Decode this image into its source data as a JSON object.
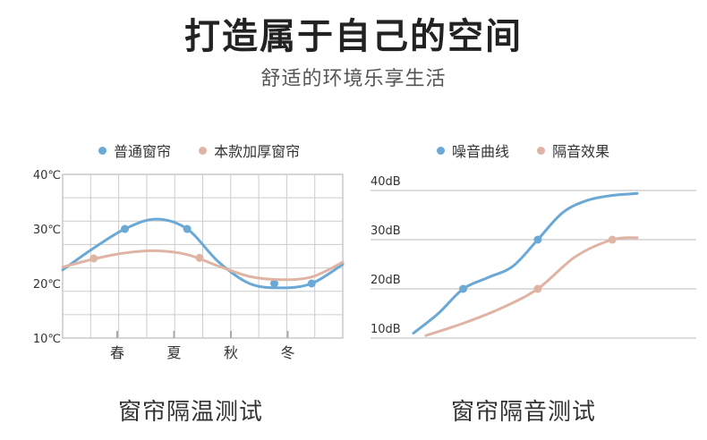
{
  "header": {
    "title": "打造属于自己的空间",
    "subtitle": "舒适的环境乐享生活"
  },
  "colors": {
    "blue": "#6aa8d6",
    "pink": "#e0b4a4",
    "grid": "#cccccc"
  },
  "chart_data": [
    {
      "type": "line",
      "caption": "窗帘隔温测试",
      "categories": [
        "春",
        "夏",
        "秋",
        "冬"
      ],
      "y_ticks": [
        "40℃",
        "30℃",
        "20℃",
        "10℃"
      ],
      "ylim": [
        10,
        40
      ],
      "grid": true,
      "legend_position": "top",
      "series": [
        {
          "name": "普通窗帘",
          "color": "#6aa8d6",
          "curve": [
            [
              0,
              22.5
            ],
            [
              1,
              26.5
            ],
            [
              2,
              30
            ],
            [
              3,
              31.8
            ],
            [
              4,
              30
            ],
            [
              5,
              24
            ],
            [
              6,
              20
            ],
            [
              7,
              19.2
            ],
            [
              8,
              20
            ],
            [
              9,
              23.5
            ]
          ],
          "markers": [
            [
              2,
              30
            ],
            [
              4,
              30
            ],
            [
              6.8,
              20
            ],
            [
              8,
              20
            ]
          ]
        },
        {
          "name": "本款加厚窗帘",
          "color": "#e0b4a4",
          "curve": [
            [
              0,
              23
            ],
            [
              1,
              24.5
            ],
            [
              2,
              25.6
            ],
            [
              3,
              26
            ],
            [
              4,
              25.3
            ],
            [
              5,
              23.2
            ],
            [
              6,
              21.3
            ],
            [
              7,
              20.7
            ],
            [
              8,
              21.2
            ],
            [
              9,
              23.9
            ]
          ],
          "markers": [
            [
              1,
              24.6
            ],
            [
              4.4,
              24.7
            ]
          ]
        }
      ]
    },
    {
      "type": "line",
      "caption": "窗帘隔音测试",
      "y_ticks": [
        "40dB",
        "30dB",
        "20dB",
        "10dB"
      ],
      "ylim": [
        10,
        40
      ],
      "grid": true,
      "legend_position": "top",
      "series": [
        {
          "name": "噪音曲线",
          "color": "#6aa8d6",
          "curve": [
            [
              0,
              11
            ],
            [
              1,
              15
            ],
            [
              2,
              20
            ],
            [
              3,
              22.3
            ],
            [
              4,
              24.6
            ],
            [
              5,
              30
            ],
            [
              6,
              35.5
            ],
            [
              7,
              38
            ],
            [
              8,
              39
            ],
            [
              9,
              39.4
            ]
          ],
          "markers": [
            [
              2,
              20
            ],
            [
              5,
              30
            ]
          ]
        },
        {
          "name": "隔音效果",
          "color": "#e0b4a4",
          "curve": [
            [
              0.5,
              10.5
            ],
            [
              2,
              13
            ],
            [
              3.5,
              16
            ],
            [
              5,
              20
            ],
            [
              6.5,
              26.5
            ],
            [
              8,
              30
            ],
            [
              9,
              30.4
            ]
          ],
          "markers": [
            [
              5,
              20
            ],
            [
              8,
              30
            ]
          ]
        }
      ]
    }
  ]
}
